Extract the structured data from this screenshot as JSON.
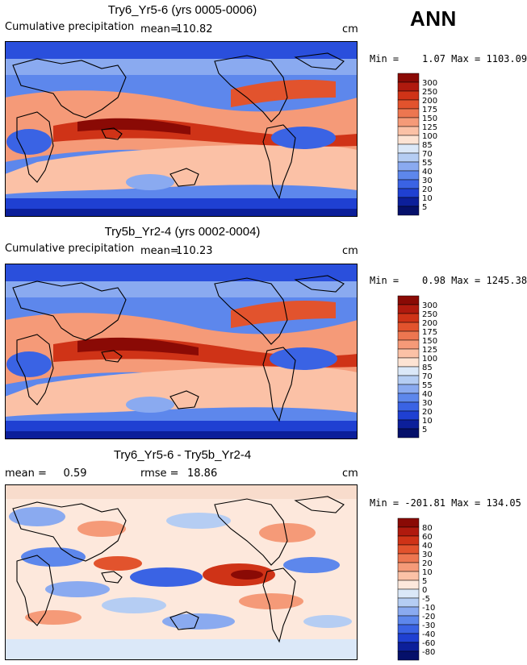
{
  "season": "ANN",
  "panels": [
    {
      "title": "Try6_Yr5-6 (yrs 0005-0006)",
      "left_label": "Cumulative precipitation",
      "stat_label": "mean=",
      "stat_value": "110.82",
      "units": "cm",
      "minmax": "Min =    1.07 Max = 1103.09",
      "colorbar": {
        "levels": [
          "300",
          "250",
          "200",
          "175",
          "150",
          "125",
          "100",
          "85",
          "70",
          "55",
          "40",
          "30",
          "20",
          "10",
          "5"
        ],
        "colors": [
          "#8a0a05",
          "#b01a0e",
          "#cf3317",
          "#e2532d",
          "#ed7650",
          "#f59a78",
          "#fbc1a6",
          "#fde3d3",
          "#dbe8f8",
          "#b5cdf3",
          "#8aaaf0",
          "#5d87ec",
          "#3a63e4",
          "#1f40d2",
          "#0c1f9a",
          "#05106a"
        ]
      }
    },
    {
      "title": "Try5b_Yr2-4 (yrs 0002-0004)",
      "left_label": "Cumulative precipitation",
      "stat_label": "mean=",
      "stat_value": "110.23",
      "units": "cm",
      "minmax": "Min =    0.98 Max = 1245.38",
      "colorbar": {
        "levels": [
          "300",
          "250",
          "200",
          "175",
          "150",
          "125",
          "100",
          "85",
          "70",
          "55",
          "40",
          "30",
          "20",
          "10",
          "5"
        ],
        "colors": [
          "#8a0a05",
          "#b01a0e",
          "#cf3317",
          "#e2532d",
          "#ed7650",
          "#f59a78",
          "#fbc1a6",
          "#fde3d3",
          "#dbe8f8",
          "#b5cdf3",
          "#8aaaf0",
          "#5d87ec",
          "#3a63e4",
          "#1f40d2",
          "#0c1f9a",
          "#05106a"
        ]
      }
    },
    {
      "title": "Try6_Yr5-6 - Try5b_Yr2-4",
      "left_label": "mean =     0.59",
      "stat_label": "rmse =",
      "stat_value": "18.86",
      "units": "cm",
      "minmax": "Min = -201.81 Max = 134.05",
      "colorbar": {
        "levels": [
          "80",
          "60",
          "40",
          "30",
          "20",
          "10",
          "5",
          "0",
          "-5",
          "-10",
          "-20",
          "-30",
          "-40",
          "-60",
          "-80"
        ],
        "colors": [
          "#8a0a05",
          "#b01a0e",
          "#cf3317",
          "#e2532d",
          "#ed7650",
          "#f59a78",
          "#fbc1a6",
          "#fde8dc",
          "#dbe8f8",
          "#b5cdf3",
          "#8aaaf0",
          "#5d87ec",
          "#3a63e4",
          "#1f40d2",
          "#0c1f9a",
          "#05106a"
        ]
      }
    }
  ],
  "chart_data": {
    "type": "heatmap",
    "title": "ANN",
    "maps": [
      {
        "name": "Try6_Yr5-6 (yrs 0005-0006)",
        "variable": "Cumulative precipitation",
        "mean": 110.82,
        "min": 1.07,
        "max": 1103.09,
        "units": "cm"
      },
      {
        "name": "Try5b_Yr2-4 (yrs 0002-0004)",
        "variable": "Cumulative precipitation",
        "mean": 110.23,
        "min": 0.98,
        "max": 1245.38,
        "units": "cm"
      },
      {
        "name": "Try6_Yr5-6 - Try5b_Yr2-4",
        "mean": 0.59,
        "rmse": 18.86,
        "min": -201.81,
        "max": 134.05,
        "units": "cm"
      }
    ]
  }
}
